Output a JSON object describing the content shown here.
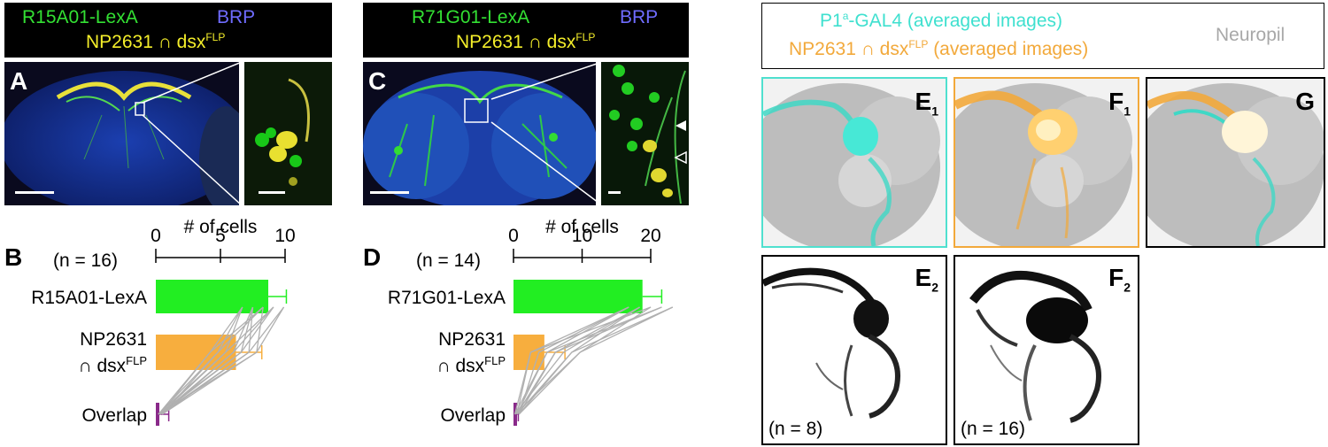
{
  "panel_A": {
    "label": "A",
    "header_line1_left": "R15A01-LexA",
    "header_line1_right": "BRP",
    "header_line2": "NP2631 ∩ dsx",
    "header_line2_sup": "FLP"
  },
  "panel_C": {
    "label": "C",
    "header_line1_left": "R71G01-LexA",
    "header_line1_right": "BRP",
    "header_line2": "NP2631 ∩ dsx",
    "header_line2_sup": "FLP"
  },
  "panel_B": {
    "label": "B",
    "n_text": "(n = 16)",
    "axis_title": "# of cells",
    "rows": [
      "R15A01-LexA",
      "NP2631",
      "∩ dsx",
      "FLP",
      "Overlap"
    ]
  },
  "panel_D": {
    "label": "D",
    "n_text": "(n = 14)",
    "axis_title": "# of cells",
    "rows": [
      "R71G01-LexA",
      "NP2631",
      "∩ dsx",
      "FLP",
      "Overlap"
    ]
  },
  "panel_E_header": {
    "line1": "P1",
    "line1_sup": "a",
    "line1_rest": "-GAL4 (averaged images)",
    "line2": "NP2631 ∩ dsx",
    "line2_sup": "FLP",
    "line2_rest": " (averaged images)",
    "neuropil": "Neuropil"
  },
  "panels_EFG": {
    "E1": {
      "main": "E",
      "sub": "1"
    },
    "F1": {
      "main": "F",
      "sub": "1"
    },
    "G": {
      "main": "G"
    },
    "E2": {
      "main": "E",
      "sub": "2",
      "n_text": "(n = 8)"
    },
    "F2": {
      "main": "F",
      "sub": "2",
      "n_text": "(n = 16)"
    }
  },
  "chart_data": [
    {
      "type": "bar",
      "title": "# of cells",
      "categories": [
        "R15A01-LexA",
        "NP2631 ∩ dsxFLP",
        "Overlap"
      ],
      "values": [
        8.7,
        6.2,
        0.2
      ],
      "error": [
        1.4,
        2.0,
        0.8
      ],
      "xlim": [
        0,
        10
      ],
      "ticks": [
        0,
        5,
        10
      ],
      "colors": [
        "#22ee22",
        "#f7ae3e",
        "#8a2a8a"
      ]
    },
    {
      "type": "bar",
      "title": "# of cells",
      "categories": [
        "R71G01-LexA",
        "NP2631 ∩ dsxFLP",
        "Overlap"
      ],
      "values": [
        18.8,
        4.5,
        0.3
      ],
      "error": [
        2.8,
        3.0,
        0.4
      ],
      "xlim": [
        0,
        20
      ],
      "ticks": [
        0,
        10,
        20
      ],
      "colors": [
        "#22ee22",
        "#f7ae3e",
        "#8a2a8a"
      ]
    }
  ]
}
